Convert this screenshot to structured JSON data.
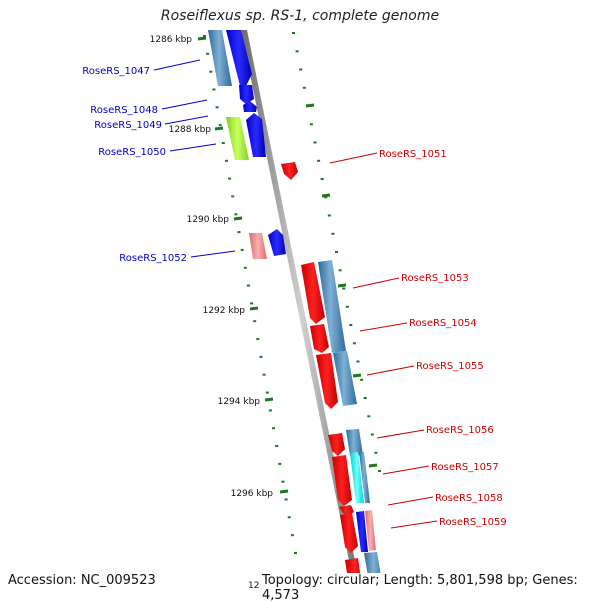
{
  "title": "Roseiflexus sp. RS-1, complete genome",
  "footer": {
    "accession": "Accession: NC_009523",
    "stats": "Topology: circular; Length: 5,801,598 bp; Genes: 4,573",
    "clipped_tick": "12"
  },
  "colors": {
    "forward_label": "#0000cc",
    "reverse_label": "#cc0000",
    "backbone": "#888888",
    "tick": "#1a7a1a"
  },
  "ticks": [
    {
      "label": "1286 kbp"
    },
    {
      "label": "1288 kbp"
    },
    {
      "label": "1290 kbp"
    },
    {
      "label": "1292 kbp"
    },
    {
      "label": "1294 kbp"
    },
    {
      "label": "1296 kbp"
    }
  ],
  "genes_left": [
    {
      "label": "RoseRS_1047"
    },
    {
      "label": "RoseRS_1048"
    },
    {
      "label": "RoseRS_1049"
    },
    {
      "label": "RoseRS_1050"
    },
    {
      "label": "RoseRS_1052"
    }
  ],
  "genes_right": [
    {
      "label": "RoseRS_1051"
    },
    {
      "label": "RoseRS_1053"
    },
    {
      "label": "RoseRS_1054"
    },
    {
      "label": "RoseRS_1055"
    },
    {
      "label": "RoseRS_1056"
    },
    {
      "label": "RoseRS_1057"
    },
    {
      "label": "RoseRS_1058"
    },
    {
      "label": "RoseRS_1059"
    }
  ]
}
